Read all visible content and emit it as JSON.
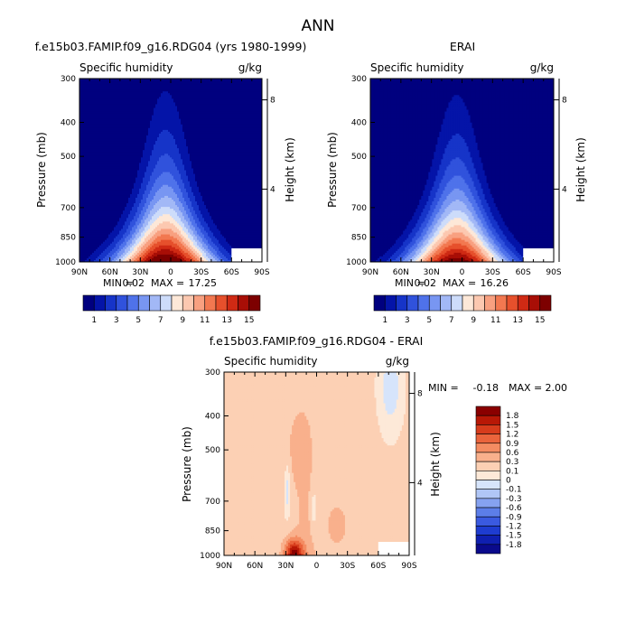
{
  "figure": {
    "title": "ANN"
  },
  "colors": {
    "ramp": [
      "#00007f",
      "#0414a8",
      "#1634c8",
      "#3052dc",
      "#4f72ea",
      "#7896f2",
      "#a2b8f6",
      "#cddcfa",
      "#fde8d8",
      "#fcc8b0",
      "#f8a080",
      "#f27850",
      "#e6502c",
      "#cf2a14",
      "#a80e06",
      "#7d0000"
    ],
    "diff": [
      "#0a0a8c",
      "#0f1fb0",
      "#1e3cd0",
      "#3a5ae0",
      "#5c7ee8",
      "#86a2f0",
      "#b0c6f6",
      "#d6e4fb",
      "#fde9d8",
      "#fcd0b4",
      "#f9b08c",
      "#f48c62",
      "#ea643c",
      "#d73c1c",
      "#b81806",
      "#8a0000"
    ]
  },
  "chart_data": [
    {
      "type": "heatmap",
      "title": "f.e15b03.FAMIP.f09_g16.RDG04 (yrs 1980-1999)",
      "field": "Specific humidity",
      "units": "g/kg",
      "ylabel": "Pressure (mb)",
      "y2label": "Height (km)",
      "xticks": [
        "90N",
        "60N",
        "30N",
        "0",
        "30S",
        "60S",
        "90S"
      ],
      "x_range": [
        90,
        -90
      ],
      "yticks": [
        "300",
        "400",
        "500",
        "700",
        "850",
        "1000"
      ],
      "y_range": [
        300,
        1000
      ],
      "y2ticks": [
        "8",
        "4"
      ],
      "y2tick_pressures": [
        345,
        620
      ],
      "levels": [
        1,
        2,
        3,
        4,
        5,
        6,
        7,
        8,
        9,
        10,
        11,
        12,
        13,
        14,
        15
      ],
      "colorbar_labels": [
        "1",
        "3",
        "5",
        "7",
        "9",
        "11",
        "13",
        "15"
      ],
      "min_label": "MIN =",
      "min": "0.02",
      "max_label": "MAX =",
      "max": "17.25",
      "peak": 17.25,
      "peak_lat": 5
    },
    {
      "type": "heatmap",
      "title": "ERAI",
      "field": "Specific humidity",
      "units": "g/kg",
      "ylabel": "Pressure (mb)",
      "y2label": "Height (km)",
      "xticks": [
        "90N",
        "60N",
        "30N",
        "0",
        "30S",
        "60S",
        "90S"
      ],
      "x_range": [
        90,
        -90
      ],
      "yticks": [
        "300",
        "400",
        "500",
        "700",
        "850",
        "1000"
      ],
      "y_range": [
        300,
        1000
      ],
      "y2ticks": [
        "8",
        "4"
      ],
      "y2tick_pressures": [
        345,
        620
      ],
      "levels": [
        1,
        2,
        3,
        4,
        5,
        6,
        7,
        8,
        9,
        10,
        11,
        12,
        13,
        14,
        15
      ],
      "colorbar_labels": [
        "1",
        "3",
        "5",
        "7",
        "9",
        "11",
        "13",
        "15"
      ],
      "min_label": "MIN =",
      "min": "0.02",
      "max_label": "MAX =",
      "max": "16.26",
      "peak": 16.26,
      "peak_lat": 5
    },
    {
      "type": "heatmap",
      "title": "f.e15b03.FAMIP.f09_g16.RDG04 - ERAI",
      "field": "Specific humidity",
      "units": "g/kg",
      "ylabel": "Pressure (mb)",
      "y2label": "Height (km)",
      "xticks": [
        "90N",
        "60N",
        "30N",
        "0",
        "30S",
        "60S",
        "90S"
      ],
      "x_range": [
        90,
        -90
      ],
      "yticks": [
        "300",
        "400",
        "500",
        "700",
        "850",
        "1000"
      ],
      "y_range": [
        300,
        1000
      ],
      "y2ticks": [
        "8",
        "4"
      ],
      "y2tick_pressures": [
        345,
        620
      ],
      "levels": [
        -1.8,
        -1.5,
        -1.2,
        -0.9,
        -0.6,
        -0.3,
        -0.1,
        0,
        0.1,
        0.3,
        0.6,
        0.9,
        1.2,
        1.5,
        1.8
      ],
      "colorbar_labels": [
        "1.8",
        "1.5",
        "1.2",
        "0.9",
        "0.6",
        "0.3",
        "0.1",
        "0",
        "-0.1",
        "-0.3",
        "-0.6",
        "-0.9",
        "-1.2",
        "-1.5",
        "-1.8"
      ],
      "min_label": "MIN =",
      "min": "-0.18",
      "max_label": "MAX =",
      "max": "2.00"
    }
  ]
}
